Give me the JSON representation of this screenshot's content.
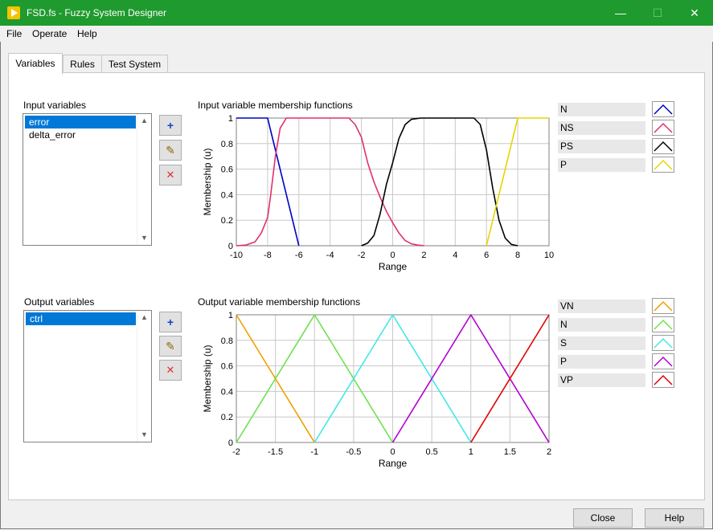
{
  "window": {
    "title": "FSD.fs - Fuzzy System Designer",
    "minimize": "—",
    "maximize": "☐",
    "close": "✕"
  },
  "menu": [
    "File",
    "Operate",
    "Help"
  ],
  "tabs": [
    {
      "label": "Variables"
    },
    {
      "label": "Rules"
    },
    {
      "label": "Test System"
    }
  ],
  "input": {
    "label": "Input variables",
    "items": [
      "error",
      "delta_error"
    ],
    "plot_title": "Input variable membership functions",
    "legend": [
      {
        "name": "N",
        "color": "#0000c8"
      },
      {
        "name": "NS",
        "color": "#e0306a"
      },
      {
        "name": "PS",
        "color": "#000000"
      },
      {
        "name": "P",
        "color": "#e8d400"
      }
    ]
  },
  "output": {
    "label": "Output variables",
    "items": [
      "ctrl"
    ],
    "plot_title": "Output variable membership functions",
    "legend": [
      {
        "name": "VN",
        "color": "#f0a000"
      },
      {
        "name": "N",
        "color": "#70e050"
      },
      {
        "name": "S",
        "color": "#40e8e8"
      },
      {
        "name": "P",
        "color": "#b000d0"
      },
      {
        "name": "VP",
        "color": "#e00000"
      }
    ]
  },
  "buttons": {
    "add": "+",
    "edit": "✎",
    "delete": "✕",
    "close": "Close",
    "help": "Help"
  },
  "chart_data": [
    {
      "type": "line",
      "title": "Input variable membership functions",
      "xlabel": "Range",
      "ylabel": "Membership (u)",
      "xlim": [
        -10,
        10
      ],
      "ylim": [
        0,
        1
      ],
      "xticks": [
        "-10",
        "-8",
        "-6",
        "-4",
        "-2",
        "0",
        "2",
        "4",
        "6",
        "8",
        "10"
      ],
      "yticks": [
        "0",
        "0.2",
        "0.4",
        "0.6",
        "0.8",
        "1"
      ],
      "series": [
        {
          "name": "N",
          "color": "#0000c8",
          "shape": "trapezoid",
          "points": [
            [
              -10,
              1
            ],
            [
              -8,
              1
            ],
            [
              -6,
              0
            ]
          ]
        },
        {
          "name": "NS",
          "color": "#e0306a",
          "shape": "smooth",
          "points": [
            [
              -10,
              0
            ],
            [
              -9.4,
              0.005
            ],
            [
              -8.8,
              0.03
            ],
            [
              -8.4,
              0.1
            ],
            [
              -8,
              0.22
            ],
            [
              -7.8,
              0.4
            ],
            [
              -7.5,
              0.7
            ],
            [
              -7.2,
              0.92
            ],
            [
              -6.8,
              1
            ],
            [
              -2.8,
              1
            ],
            [
              -2.4,
              0.95
            ],
            [
              -2,
              0.85
            ],
            [
              -1.6,
              0.65
            ],
            [
              -1.2,
              0.5
            ],
            [
              -0.8,
              0.38
            ],
            [
              -0.4,
              0.27
            ],
            [
              0,
              0.18
            ],
            [
              0.4,
              0.1
            ],
            [
              0.8,
              0.04
            ],
            [
              1.2,
              0.015
            ],
            [
              1.6,
              0.005
            ],
            [
              2,
              0
            ]
          ]
        },
        {
          "name": "PS",
          "color": "#000000",
          "shape": "smooth",
          "points": [
            [
              -2,
              0
            ],
            [
              -1.6,
              0.02
            ],
            [
              -1.2,
              0.08
            ],
            [
              -0.8,
              0.25
            ],
            [
              -0.4,
              0.48
            ],
            [
              0,
              0.65
            ],
            [
              0.4,
              0.84
            ],
            [
              0.8,
              0.95
            ],
            [
              1.2,
              0.99
            ],
            [
              1.8,
              1
            ],
            [
              5.2,
              1
            ],
            [
              5.6,
              0.95
            ],
            [
              6,
              0.75
            ],
            [
              6.4,
              0.45
            ],
            [
              6.8,
              0.2
            ],
            [
              7.2,
              0.06
            ],
            [
              7.6,
              0.01
            ],
            [
              8,
              0
            ]
          ]
        },
        {
          "name": "P",
          "color": "#e8d400",
          "shape": "trapezoid",
          "points": [
            [
              6,
              0
            ],
            [
              8,
              1
            ],
            [
              10,
              1
            ]
          ]
        }
      ]
    },
    {
      "type": "line",
      "title": "Output variable membership functions",
      "xlabel": "Range",
      "ylabel": "Membership (u)",
      "xlim": [
        -2,
        2
      ],
      "ylim": [
        0,
        1
      ],
      "xticks": [
        "-2",
        "-1.5",
        "-1",
        "-0.5",
        "0",
        "0.5",
        "1",
        "1.5",
        "2"
      ],
      "yticks": [
        "0",
        "0.2",
        "0.4",
        "0.6",
        "0.8",
        "1"
      ],
      "series": [
        {
          "name": "VN",
          "color": "#f0a000",
          "shape": "triangle",
          "points": [
            [
              -2,
              1
            ],
            [
              -1,
              0
            ]
          ]
        },
        {
          "name": "N",
          "color": "#70e050",
          "shape": "triangle",
          "points": [
            [
              -2,
              0
            ],
            [
              -1,
              1
            ],
            [
              0,
              0
            ]
          ]
        },
        {
          "name": "S",
          "color": "#40e8e8",
          "shape": "triangle",
          "points": [
            [
              -1,
              0
            ],
            [
              0,
              1
            ],
            [
              1,
              0
            ]
          ]
        },
        {
          "name": "P",
          "color": "#b000d0",
          "shape": "triangle",
          "points": [
            [
              0,
              0
            ],
            [
              1,
              1
            ],
            [
              2,
              0
            ]
          ]
        },
        {
          "name": "VP",
          "color": "#e00000",
          "shape": "triangle",
          "points": [
            [
              1,
              0
            ],
            [
              2,
              1
            ]
          ]
        }
      ]
    }
  ]
}
